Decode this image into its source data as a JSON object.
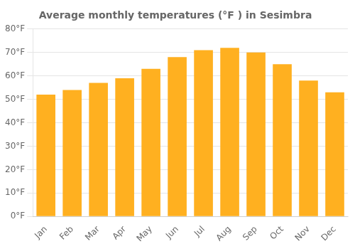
{
  "chart_data": {
    "type": "bar",
    "title": "Average monthly temperatures (°F ) in Sesimbra",
    "categories": [
      "Jan",
      "Feb",
      "Mar",
      "Apr",
      "May",
      "Jun",
      "Jul",
      "Aug",
      "Sep",
      "Oct",
      "Nov",
      "Dec"
    ],
    "values": [
      52,
      54,
      57,
      59,
      63,
      68,
      71,
      72,
      70,
      65,
      58,
      53
    ],
    "color": "#FFB020",
    "ylim": [
      0,
      80
    ],
    "yticks": [
      {
        "value": 0,
        "label": "0°F"
      },
      {
        "value": 10,
        "label": "10°F"
      },
      {
        "value": 20,
        "label": "20°F"
      },
      {
        "value": 30,
        "label": "30°F"
      },
      {
        "value": 40,
        "label": "40°F"
      },
      {
        "value": 50,
        "label": "50°F"
      },
      {
        "value": 60,
        "label": "60°F"
      },
      {
        "value": 70,
        "label": "70°F"
      },
      {
        "value": 80,
        "label": "80°F"
      }
    ],
    "grid": true
  }
}
